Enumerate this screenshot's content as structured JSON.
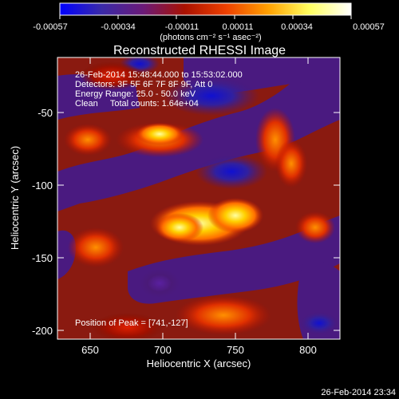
{
  "colorbar": {
    "ticks": [
      "-0.00057",
      "-0.00034",
      "-0.00011",
      "0.00011",
      "0.00034",
      "0.00057"
    ],
    "units_label": "(photons cm⁻² s⁻¹ asec⁻²)",
    "colors": [
      "#0000ff",
      "#3a2aa8",
      "#6a1a78",
      "#aa1100",
      "#ee4000",
      "#ffa000",
      "#ffff60",
      "#ffffff"
    ]
  },
  "image": {
    "title": "Reconstructed RHESSI Image",
    "info_lines": [
      "26-Feb-2014 15:48:44.000 to 15:53:02.000",
      "Detectors: 3F 5F 6F 7F 8F 9F, Att 0",
      "Energy Range: 25.0 - 50.0 keV",
      "Clean     Total counts: 1.64e+04"
    ],
    "peak_label": "Position of Peak = [741,-127]",
    "xlabel": "Heliocentric X (arcsec)",
    "ylabel": "Heliocentric Y (arcsec)",
    "xticks": [
      "650",
      "700",
      "750",
      "800"
    ],
    "yticks": [
      "-50",
      "-100",
      "-150",
      "-200"
    ],
    "x_range": [
      627,
      822
    ],
    "y_range": [
      -206,
      -12
    ]
  },
  "footer": {
    "timestamp": "26-Feb-2014 23:34"
  }
}
